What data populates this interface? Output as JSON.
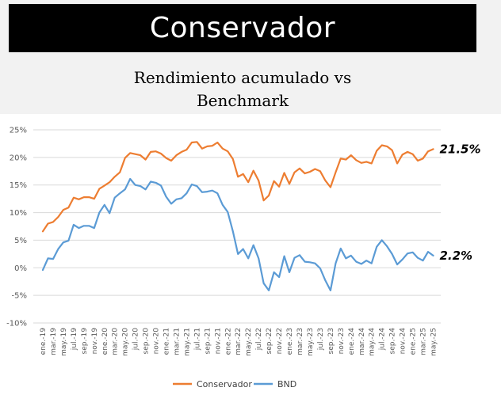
{
  "header": {
    "title": "Conservador",
    "subtitle_line1": "Rendimiento acumulado vs",
    "subtitle_line2": "Benchmark"
  },
  "colors": {
    "conservador": "#ED7D31",
    "bnd": "#5B9BD5",
    "grid": "#d9d9d9"
  },
  "chart_data": {
    "type": "line",
    "title": "",
    "xlabel": "",
    "ylabel": "",
    "ylim": [
      -10,
      25
    ],
    "yticks": [
      "-10%",
      "-5%",
      "0%",
      "5%",
      "10%",
      "15%",
      "20%",
      "25%"
    ],
    "grid": true,
    "legend_position": "bottom",
    "categories": [
      "ene.-19",
      "feb.-19",
      "mar.-19",
      "abr.-19",
      "may.-19",
      "jun.-19",
      "jul.-19",
      "ago.-19",
      "sep.-19",
      "oct.-19",
      "nov.-19",
      "dic.-19",
      "ene.-20",
      "feb.-20",
      "mar.-20",
      "abr.-20",
      "may.-20",
      "jun.-20",
      "jul.-20",
      "ago.-20",
      "sep.-20",
      "oct.-20",
      "nov.-20",
      "dic.-20",
      "ene.-21",
      "feb.-21",
      "mar.-21",
      "abr.-21",
      "may.-21",
      "jun.-21",
      "jul.-21",
      "ago.-21",
      "sep.-21",
      "oct.-21",
      "nov.-21",
      "dic.-21",
      "ene.-22",
      "feb.-22",
      "mar.-22",
      "abr.-22",
      "may.-22",
      "jun.-22",
      "jul.-22",
      "ago.-22",
      "sep.-22",
      "oct.-22",
      "nov.-22",
      "dic.-22",
      "ene.-23",
      "feb.-23",
      "mar.-23",
      "abr.-23",
      "may.-23",
      "jun.-23",
      "jul.-23",
      "ago.-23",
      "sep.-23",
      "oct.-23",
      "nov.-23",
      "dic.-23",
      "ene.-24",
      "feb.-24",
      "mar.-24",
      "abr.-24",
      "may.-24",
      "jun.-24",
      "jul.-24",
      "ago.-24",
      "sep.-24",
      "oct.-24",
      "nov.-24",
      "dic.-24",
      "ene.-25",
      "feb.-25",
      "mar.-25",
      "abr.-25",
      "may.-25"
    ],
    "tick_labels": [
      "ene.-19",
      "mar.-19",
      "may.-19",
      "jul.-19",
      "sep.-19",
      "nov.-19",
      "ene.-20",
      "mar.-20",
      "may.-20",
      "jul.-20",
      "sep.-20",
      "nov.-20",
      "ene.-21",
      "mar.-21",
      "may.-21",
      "jul.-21",
      "sep.-21",
      "nov.-21",
      "ene.-22",
      "mar.-22",
      "may.-22",
      "jul.-22",
      "sep.-22",
      "nov.-22",
      "ene.-23",
      "mar.-23",
      "may.-23",
      "jul.-23",
      "sep.-23",
      "nov.-23",
      "ene.-24",
      "mar.-24",
      "may.-24",
      "jul.-24",
      "sep.-24",
      "nov.-24",
      "ene.-25",
      "mar.-25",
      "may.-25"
    ],
    "series": [
      {
        "name": "Conservador",
        "color": "#ED7D31",
        "end_label": "21.5%",
        "values": [
          6.6,
          8.0,
          8.3,
          9.2,
          10.5,
          10.9,
          12.7,
          12.4,
          12.8,
          12.8,
          12.5,
          14.3,
          14.9,
          15.5,
          16.5,
          17.3,
          19.9,
          20.8,
          20.6,
          20.4,
          19.6,
          21.0,
          21.1,
          20.7,
          19.9,
          19.4,
          20.4,
          21.0,
          21.4,
          22.7,
          22.8,
          21.6,
          22.0,
          22.1,
          22.7,
          21.6,
          21.1,
          19.7,
          16.5,
          17.0,
          15.5,
          17.6,
          15.8,
          12.2,
          13.1,
          15.7,
          14.7,
          17.2,
          15.2,
          17.3,
          18.0,
          17.1,
          17.4,
          17.9,
          17.5,
          15.8,
          14.6,
          17.3,
          19.8,
          19.6,
          20.4,
          19.5,
          19.0,
          19.2,
          18.9,
          21.2,
          22.2,
          22.0,
          21.3,
          18.9,
          20.5,
          21.0,
          20.6,
          19.4,
          19.8,
          21.1,
          21.5
        ]
      },
      {
        "name": "BND",
        "color": "#5B9BD5",
        "end_label": "2.2%",
        "values": [
          -0.4,
          1.7,
          1.6,
          3.4,
          4.6,
          4.9,
          7.8,
          7.2,
          7.6,
          7.6,
          7.2,
          10.0,
          11.4,
          9.9,
          12.7,
          13.5,
          14.2,
          16.1,
          15.0,
          14.8,
          14.2,
          15.6,
          15.4,
          14.9,
          12.9,
          11.6,
          12.4,
          12.6,
          13.5,
          15.1,
          14.8,
          13.7,
          13.8,
          14.0,
          13.5,
          11.4,
          10.1,
          6.6,
          2.5,
          3.4,
          1.7,
          4.1,
          1.7,
          -2.8,
          -4.1,
          -0.8,
          -1.7,
          2.1,
          -0.8,
          1.8,
          2.3,
          1.1,
          1.0,
          0.8,
          -0.1,
          -2.3,
          -4.1,
          0.8,
          3.5,
          1.7,
          2.2,
          1.1,
          0.7,
          1.3,
          0.8,
          3.8,
          5.0,
          3.9,
          2.5,
          0.6,
          1.5,
          2.6,
          2.8,
          1.8,
          1.3,
          2.9,
          2.2
        ]
      }
    ]
  }
}
